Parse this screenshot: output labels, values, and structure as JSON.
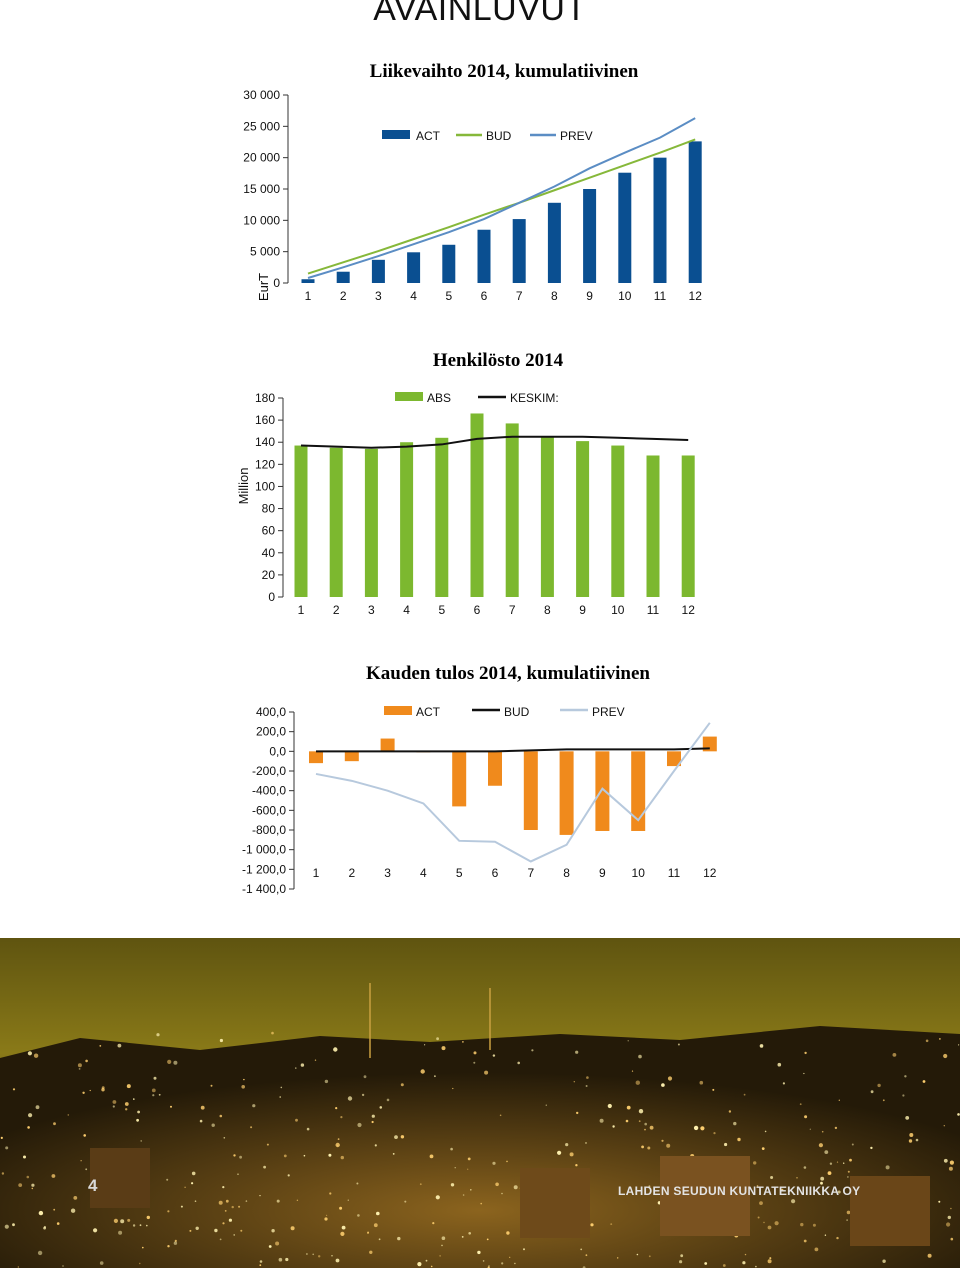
{
  "page": {
    "title": "AVAINLUVUT",
    "page_number": "4",
    "company": "LAHDEN SEUDUN KUNTATEKNIIKKA OY"
  },
  "colors": {
    "act_blue": "#0a4f91",
    "prev_blue": "#5b8dc4",
    "bud_green": "#86b83a",
    "abs_green": "#7cb82f",
    "keskim_black": "#111111",
    "act_orange": "#f08a1c",
    "prev_light": "#b7c9dd"
  },
  "chart_data": [
    {
      "type": "bar",
      "title": "Liikevaihto 2014, kumulatiivinen",
      "xlabel": "",
      "ylabel": "EurT",
      "ylim": [
        0,
        30000
      ],
      "yticks": [
        "0",
        "5 000",
        "10 000",
        "15 000",
        "20 000",
        "25 000",
        "30 000"
      ],
      "categories": [
        "1",
        "2",
        "3",
        "4",
        "5",
        "6",
        "7",
        "8",
        "9",
        "10",
        "11",
        "12"
      ],
      "legend": [
        "ACT",
        "BUD",
        "PREV"
      ],
      "series": [
        {
          "name": "ACT",
          "kind": "bar",
          "values": [
            600,
            1800,
            3700,
            4900,
            6100,
            8500,
            10200,
            12800,
            15000,
            17600,
            20000,
            22600
          ]
        },
        {
          "name": "BUD",
          "kind": "line",
          "values": [
            1500,
            3300,
            5100,
            7000,
            8900,
            10900,
            12800,
            14800,
            16800,
            18800,
            20800,
            22900
          ]
        },
        {
          "name": "PREV",
          "kind": "line",
          "values": [
            800,
            2500,
            4300,
            6200,
            8100,
            10200,
            12800,
            15400,
            18300,
            20800,
            23200,
            26300
          ]
        }
      ]
    },
    {
      "type": "bar",
      "title": "Henkilösto 2014",
      "xlabel": "",
      "ylabel": "Million",
      "ylim": [
        0,
        180
      ],
      "yticks": [
        "0",
        "20",
        "40",
        "60",
        "80",
        "100",
        "120",
        "140",
        "160",
        "180"
      ],
      "categories": [
        "1",
        "2",
        "3",
        "4",
        "5",
        "6",
        "7",
        "8",
        "9",
        "10",
        "11",
        "12"
      ],
      "legend": [
        "ABS",
        "KESKIM:"
      ],
      "series": [
        {
          "name": "ABS",
          "kind": "bar",
          "values": [
            137,
            135,
            134,
            140,
            144,
            166,
            157,
            145,
            141,
            137,
            128,
            128
          ]
        },
        {
          "name": "KESKIM:",
          "kind": "line",
          "values": [
            137,
            136,
            135,
            136,
            138,
            143,
            145,
            145,
            145,
            144,
            143,
            142
          ]
        }
      ]
    },
    {
      "type": "bar",
      "title": "Kauden tulos 2014, kumulatiivinen",
      "xlabel": "",
      "ylabel": "",
      "ylim": [
        -1400,
        400
      ],
      "yticks": [
        "-1 400,0",
        "-1 200,0",
        "-1 000,0",
        "-800,0",
        "-600,0",
        "-400,0",
        "-200,0",
        "0,0",
        "200,0",
        "400,0"
      ],
      "categories": [
        "1",
        "2",
        "3",
        "4",
        "5",
        "6",
        "7",
        "8",
        "9",
        "10",
        "11",
        "12"
      ],
      "legend": [
        "ACT",
        "BUD",
        "PREV"
      ],
      "series": [
        {
          "name": "ACT",
          "kind": "bar",
          "values": [
            -120,
            -100,
            130,
            -10,
            -560,
            -350,
            -800,
            -850,
            -810,
            -810,
            -150,
            150
          ]
        },
        {
          "name": "BUD",
          "kind": "line",
          "values": [
            0,
            0,
            0,
            0,
            0,
            0,
            10,
            20,
            20,
            20,
            20,
            30
          ]
        },
        {
          "name": "PREV",
          "kind": "line",
          "values": [
            -230,
            -300,
            -400,
            -530,
            -910,
            -920,
            -1120,
            -950,
            -380,
            -700,
            -200,
            290
          ]
        }
      ]
    }
  ]
}
